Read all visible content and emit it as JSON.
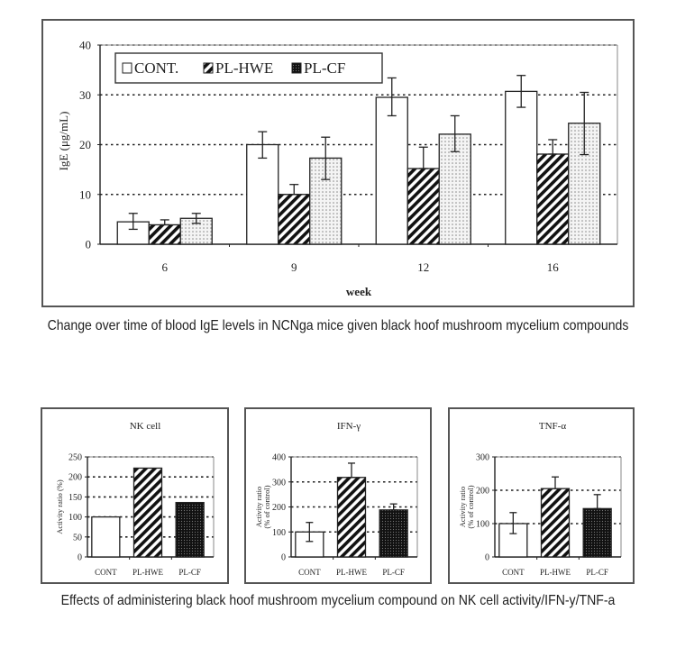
{
  "captions": {
    "main": "Change over time of blood IgE levels in NCNga mice given black hoof mushroom mycelium compounds",
    "bottom": "Effects of administering black hoof mushroom mycelium compound on NK cell activity/IFN-y/TNF-a"
  },
  "chart_data": [
    {
      "type": "bar",
      "title": "",
      "xlabel": "week",
      "ylabel": "IgE (μg/mL)",
      "ylim": [
        0,
        40
      ],
      "yticks": [
        0,
        10,
        20,
        30,
        40
      ],
      "grid": "horizontal-dotted",
      "legend_position": "top-left",
      "categories": [
        "6",
        "9",
        "12",
        "16"
      ],
      "series": [
        {
          "name": "CONT.",
          "pattern": "white",
          "values": [
            4.5,
            20.0,
            29.5,
            30.7
          ],
          "err_low": [
            3.0,
            17.3,
            25.8,
            27.5
          ],
          "err_high": [
            6.2,
            22.6,
            33.4,
            33.9
          ]
        },
        {
          "name": "PL-HWE",
          "pattern": "hatched",
          "values": [
            3.9,
            10.0,
            15.2,
            18.1
          ],
          "err_low": [
            3.9,
            10.0,
            15.2,
            18.1
          ],
          "err_high": [
            4.9,
            12.0,
            19.5,
            21.0
          ]
        },
        {
          "name": "PL-CF",
          "pattern": "dotted-light",
          "values": [
            5.2,
            17.3,
            22.1,
            24.3
          ],
          "err_low": [
            4.2,
            13.0,
            18.6,
            18.0
          ],
          "err_high": [
            6.2,
            21.5,
            25.8,
            30.5
          ]
        }
      ]
    },
    {
      "type": "bar",
      "title": "NK cell",
      "xlabel": "",
      "ylabel": "Activity ratio (%)",
      "ylim": [
        0,
        250
      ],
      "yticks": [
        0,
        50,
        100,
        150,
        200,
        250
      ],
      "grid": "horizontal-dotted",
      "categories": [
        "CONT",
        "PL-HWE",
        "PL-CF"
      ],
      "patterns": [
        "white",
        "hatched",
        "dotted-dark"
      ],
      "values": [
        100,
        222,
        136
      ],
      "err_low": [
        null,
        null,
        null
      ],
      "err_high": [
        null,
        null,
        null
      ]
    },
    {
      "type": "bar",
      "title": "IFN-γ",
      "xlabel": "",
      "ylabel": "Activity ratio (% of control)",
      "ylim": [
        0,
        400
      ],
      "yticks": [
        0,
        100,
        200,
        300,
        400
      ],
      "grid": "horizontal-dotted",
      "categories": [
        "CONT",
        "PL-HWE",
        "PL-CF"
      ],
      "patterns": [
        "white",
        "hatched",
        "dotted-dark"
      ],
      "values": [
        100,
        318,
        188
      ],
      "err_low": [
        62,
        318,
        188
      ],
      "err_high": [
        138,
        375,
        212
      ]
    },
    {
      "type": "bar",
      "title": "TNF-α",
      "xlabel": "",
      "ylabel": "Activity ratio (% of control)",
      "ylim": [
        0,
        300
      ],
      "yticks": [
        0,
        100,
        200,
        300
      ],
      "grid": "horizontal-dotted",
      "categories": [
        "CONT",
        "PL-HWE",
        "PL-CF"
      ],
      "patterns": [
        "white",
        "hatched",
        "dotted-dark"
      ],
      "values": [
        100,
        205,
        145
      ],
      "err_low": [
        70,
        205,
        145
      ],
      "err_high": [
        133,
        240,
        187
      ]
    }
  ]
}
